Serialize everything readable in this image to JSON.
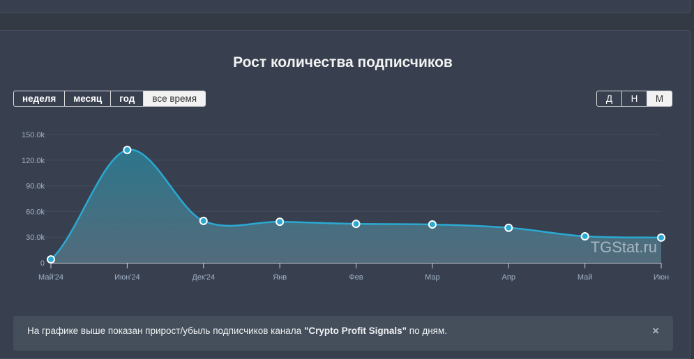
{
  "title": "Рост количества подписчиков",
  "range_buttons": [
    {
      "label": "неделя",
      "active": false
    },
    {
      "label": "месяц",
      "active": false
    },
    {
      "label": "год",
      "active": false
    },
    {
      "label": "все время",
      "active": true
    }
  ],
  "granularity_buttons": [
    {
      "label": "Д",
      "active": false
    },
    {
      "label": "Н",
      "active": false
    },
    {
      "label": "М",
      "active": true
    }
  ],
  "watermark": "TGStat.ru",
  "banner": {
    "text_before": "На графике выше показан прирост/убыль подписчиков канала ",
    "channel": "\"Crypto Profit Signals\"",
    "text_after": " по дням.",
    "close": "×"
  },
  "colors": {
    "line": "#2aa9d2",
    "marker": "#2aa9d2",
    "marker_border": "#ffffff"
  },
  "chart_data": {
    "type": "area",
    "categories": [
      "Май'24",
      "Июн'24",
      "Дек'24",
      "Янв",
      "Фев",
      "Мар",
      "Апр",
      "Май",
      "Июн"
    ],
    "values": [
      4000,
      132000,
      49000,
      48000,
      45500,
      44800,
      41000,
      31000,
      29500
    ],
    "yticks": [
      0,
      30000,
      60000,
      90000,
      120000,
      150000
    ],
    "ytick_labels": [
      "0",
      "30.0k",
      "60.0k",
      "90.0k",
      "120.0k",
      "150.0k"
    ],
    "ylim": [
      0,
      150000
    ],
    "grid": true,
    "legend": "none"
  }
}
